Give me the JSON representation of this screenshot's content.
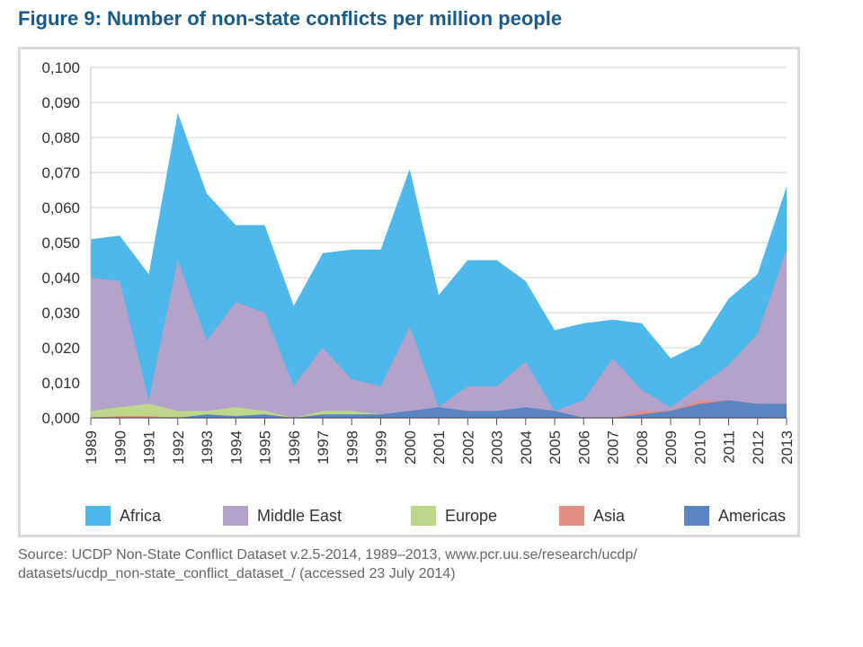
{
  "figure": {
    "title": "Figure 9: Number of non-state conflicts per million people",
    "source_line1": "Source: UCDP Non-State Conflict Dataset v.2.5-2014, 1989–2013, www.pcr.uu.se/research/ucdp/",
    "source_line2": "datasets/ucdp_non-state_conflict_dataset_/ (accessed 23 July 2014)"
  },
  "chart_data": {
    "type": "area",
    "stacked": false,
    "x": [
      "1989",
      "1990",
      "1991",
      "1992",
      "1993",
      "1994",
      "1995",
      "1996",
      "1997",
      "1998",
      "1999",
      "2000",
      "2001",
      "2002",
      "2003",
      "2004",
      "2005",
      "2006",
      "2007",
      "2008",
      "2009",
      "2010",
      "2011",
      "2012",
      "2013"
    ],
    "ylim": [
      0,
      0.1
    ],
    "yticks": [
      "0,000",
      "0,010",
      "0,020",
      "0,030",
      "0,040",
      "0,050",
      "0,060",
      "0,070",
      "0,080",
      "0,090",
      "0,100"
    ],
    "grid": true,
    "legend_position": "bottom",
    "series": [
      {
        "name": "Africa",
        "color": "#4fb8ea",
        "values": [
          0.051,
          0.052,
          0.041,
          0.087,
          0.064,
          0.055,
          0.055,
          0.032,
          0.047,
          0.048,
          0.048,
          0.071,
          0.035,
          0.045,
          0.045,
          0.039,
          0.025,
          0.027,
          0.028,
          0.027,
          0.017,
          0.021,
          0.034,
          0.041,
          0.066
        ]
      },
      {
        "name": "Middle East",
        "color": "#b3a3cb",
        "values": [
          0.04,
          0.039,
          0.005,
          0.045,
          0.022,
          0.033,
          0.03,
          0.009,
          0.02,
          0.011,
          0.009,
          0.026,
          0.003,
          0.009,
          0.009,
          0.016,
          0.002,
          0.005,
          0.017,
          0.008,
          0.003,
          0.009,
          0.015,
          0.024,
          0.048
        ]
      },
      {
        "name": "Europe",
        "color": "#bdd68a",
        "values": [
          0.002,
          0.003,
          0.004,
          0.002,
          0.002,
          0.003,
          0.002,
          0.0,
          0.002,
          0.002,
          0.001,
          0.001,
          0.0,
          0.0,
          0.0,
          0.0,
          0.0,
          0.0,
          0.0,
          0.0,
          0.0,
          0.0,
          0.0,
          0.0,
          0.0
        ]
      },
      {
        "name": "Asia",
        "color": "#e38f86",
        "values": [
          0.0,
          0.0005,
          0.0005,
          0.0,
          0.001,
          0.0,
          0.001,
          0.0,
          0.0,
          0.0,
          0.0,
          0.001,
          0.002,
          0.002,
          0.002,
          0.002,
          0.001,
          0.0,
          0.0,
          0.002,
          0.002,
          0.005,
          0.005,
          0.004,
          0.004
        ]
      },
      {
        "name": "Americas",
        "color": "#5b84c4",
        "values": [
          0.0,
          0.0,
          0.0,
          0.0,
          0.001,
          0.0005,
          0.001,
          0.0,
          0.001,
          0.001,
          0.001,
          0.002,
          0.003,
          0.002,
          0.002,
          0.003,
          0.002,
          0.0,
          0.0,
          0.001,
          0.002,
          0.004,
          0.005,
          0.004,
          0.004
        ]
      }
    ]
  }
}
